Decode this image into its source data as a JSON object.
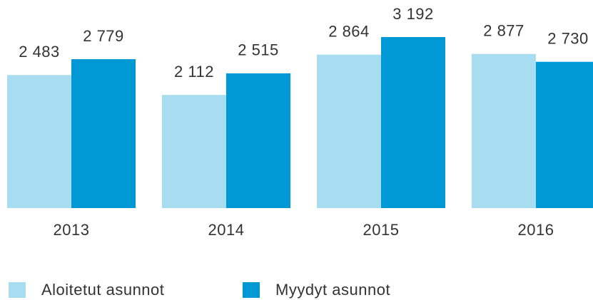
{
  "chart_data": {
    "type": "bar",
    "categories": [
      "2013",
      "2014",
      "2015",
      "2016"
    ],
    "series": [
      {
        "name": "Aloitetut asunnot",
        "color": "#a8dcf0",
        "values": [
          2483,
          2112,
          2864,
          2877
        ],
        "value_labels": [
          "2 483",
          "2 112",
          "2 864",
          "2 877"
        ]
      },
      {
        "name": "Myydyt asunnot",
        "color": "#0099d6",
        "values": [
          2779,
          2515,
          3192,
          2730
        ],
        "value_labels": [
          "2 779",
          "2 515",
          "3 192",
          "2 730"
        ]
      }
    ]
  }
}
